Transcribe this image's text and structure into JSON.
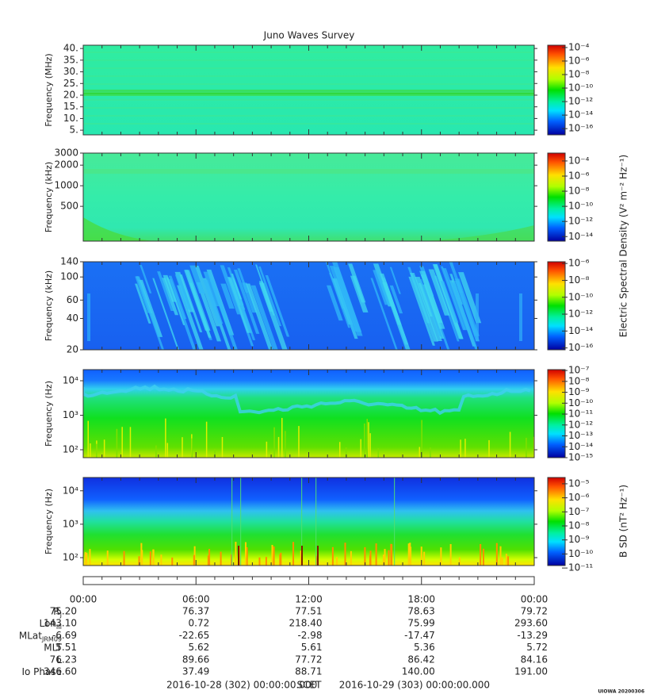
{
  "title": "Juno Waves Survey",
  "chart_data": [
    {
      "type": "spectrogram",
      "ylabel": "Frequency (MHz)",
      "log": false,
      "ylim": [
        3,
        41.4
      ],
      "yticks": [
        {
          "value": 5,
          "label": "5."
        },
        {
          "value": 10,
          "label": "10."
        },
        {
          "value": 15,
          "label": "15."
        },
        {
          "value": 20,
          "label": "20."
        },
        {
          "value": 25,
          "label": "25."
        },
        {
          "value": 30,
          "label": "30."
        },
        {
          "value": 35,
          "label": "35."
        },
        {
          "value": 40,
          "label": "40."
        }
      ],
      "colorbar": {
        "log": true,
        "clim": [
          1.2e-17,
          0.00022
        ],
        "ticks": [
          {
            "value": 0.0001,
            "label": "10⁻⁴"
          },
          {
            "value": 1e-06,
            "label": "10⁻⁶"
          },
          {
            "value": 1e-08,
            "label": "10⁻⁸"
          },
          {
            "value": 1e-10,
            "label": "10⁻¹⁰"
          },
          {
            "value": 1e-12,
            "label": "10⁻¹²"
          },
          {
            "value": 1e-14,
            "label": "10⁻¹⁴"
          },
          {
            "value": 1e-16,
            "label": "10⁻¹⁶"
          }
        ]
      }
    },
    {
      "type": "spectrogram",
      "ylabel": "Frequency (kHz)",
      "log": true,
      "ylim": [
        155,
        3000
      ],
      "yticks": [
        500,
        1000,
        2000,
        3000
      ],
      "colorbar": {
        "log": true,
        "clim": [
          2.5e-15,
          0.0011
        ],
        "label": "Electric Spectral Density (V² m⁻² Hz⁻¹)",
        "ticks": [
          {
            "value": 0.0001,
            "label": "10⁻⁴"
          },
          {
            "value": 1e-06,
            "label": "10⁻⁶"
          },
          {
            "value": 1e-08,
            "label": "10⁻⁸"
          },
          {
            "value": 1e-10,
            "label": "10⁻¹⁰"
          },
          {
            "value": 1e-12,
            "label": "10⁻¹²"
          },
          {
            "value": 1e-14,
            "label": "10⁻¹⁴"
          }
        ]
      }
    },
    {
      "type": "spectrogram",
      "ylabel": "Frequency (kHz)",
      "log": true,
      "ylim": [
        20,
        140
      ],
      "yticks": [
        20,
        40,
        60,
        100,
        140
      ],
      "colorbar": {
        "log": true,
        "clim": [
          6e-17,
          1.6e-06
        ],
        "ticks": [
          {
            "value": 1e-06,
            "label": "10⁻⁶"
          },
          {
            "value": 1e-08,
            "label": "10⁻⁸"
          },
          {
            "value": 1e-10,
            "label": "10⁻¹⁰"
          },
          {
            "value": 1e-12,
            "label": "10⁻¹²"
          },
          {
            "value": 1e-14,
            "label": "10⁻¹⁴"
          },
          {
            "value": 1e-16,
            "label": "10⁻¹⁶"
          }
        ]
      }
    },
    {
      "type": "spectrogram",
      "ylabel": "Frequency (Hz)",
      "log": true,
      "ylim": [
        59,
        21000
      ],
      "yticks": [
        {
          "value": 100,
          "label": "10²"
        },
        {
          "value": 1000,
          "label": "10³"
        },
        {
          "value": 10000,
          "label": "10⁴"
        }
      ],
      "colorbar": {
        "log": true,
        "clim": [
          1e-15,
          1.2e-07
        ],
        "ticks": [
          {
            "value": 1e-07,
            "label": "10⁻⁷"
          },
          {
            "value": 1e-08,
            "label": "10⁻⁸"
          },
          {
            "value": 1e-09,
            "label": "10⁻⁹"
          },
          {
            "value": 1e-10,
            "label": "10⁻¹⁰"
          },
          {
            "value": 1e-11,
            "label": "10⁻¹¹"
          },
          {
            "value": 1e-12,
            "label": "10⁻¹²"
          },
          {
            "value": 1e-13,
            "label": "10⁻¹³"
          },
          {
            "value": 1e-14,
            "label": "10⁻¹⁴"
          },
          {
            "value": 1e-15,
            "label": "10⁻¹⁵"
          }
        ]
      }
    },
    {
      "type": "spectrogram",
      "ylabel": "Frequency (Hz)",
      "log": true,
      "ylim": [
        58,
        25000
      ],
      "yticks": [
        {
          "value": 100,
          "label": "10²"
        },
        {
          "value": 1000,
          "label": "10³"
        },
        {
          "value": 10000,
          "label": "10⁴"
        }
      ],
      "colorbar": {
        "log": true,
        "clim": [
          1.5e-11,
          2.8e-05
        ],
        "label": "B SD (nT² Hz⁻¹)",
        "ticks": [
          {
            "value": 1e-05,
            "label": "10⁻⁵"
          },
          {
            "value": 1e-06,
            "label": "10⁻⁶"
          },
          {
            "value": 1e-07,
            "label": "10⁻⁷"
          },
          {
            "value": 1e-08,
            "label": "10⁻⁸"
          },
          {
            "value": 1e-09,
            "label": "10⁻⁹"
          },
          {
            "value": 1e-10,
            "label": "10⁻¹⁰"
          },
          {
            "value": 1e-11,
            "label": "10⁻¹¹"
          }
        ]
      }
    }
  ],
  "time_ticks": [
    "00:00",
    "06:00",
    "12:00",
    "18:00",
    "00:00"
  ],
  "ephemeris": [
    {
      "label": "R",
      "sub": "J",
      "values": [
        "75.20",
        "76.37",
        "77.51",
        "78.63",
        "79.72"
      ]
    },
    {
      "label": "Lon",
      "sub": "III",
      "values": [
        "143.10",
        "0.72",
        "218.40",
        "75.99",
        "293.60"
      ]
    },
    {
      "label": "MLat",
      "sub": "JRM09",
      "values": [
        "-6.69",
        "-22.65",
        "-2.98",
        "-17.47",
        "-13.29"
      ]
    },
    {
      "label": "MLT",
      "values": [
        "5.51",
        "5.62",
        "5.61",
        "5.36",
        "5.72"
      ]
    },
    {
      "label": "L",
      "values": [
        "76.23",
        "89.66",
        "77.72",
        "86.42",
        "84.16"
      ]
    },
    {
      "label": "Io Phase",
      "values": [
        "346.60",
        "37.49",
        "88.71",
        "140.00",
        "191.00"
      ]
    }
  ],
  "footer": {
    "start": "2016-10-28 (302) 00:00:00.000",
    "frame": "SCET",
    "end": "2016-10-29 (303) 00:00:00.000"
  },
  "stamp": "UIOWA 20200306"
}
